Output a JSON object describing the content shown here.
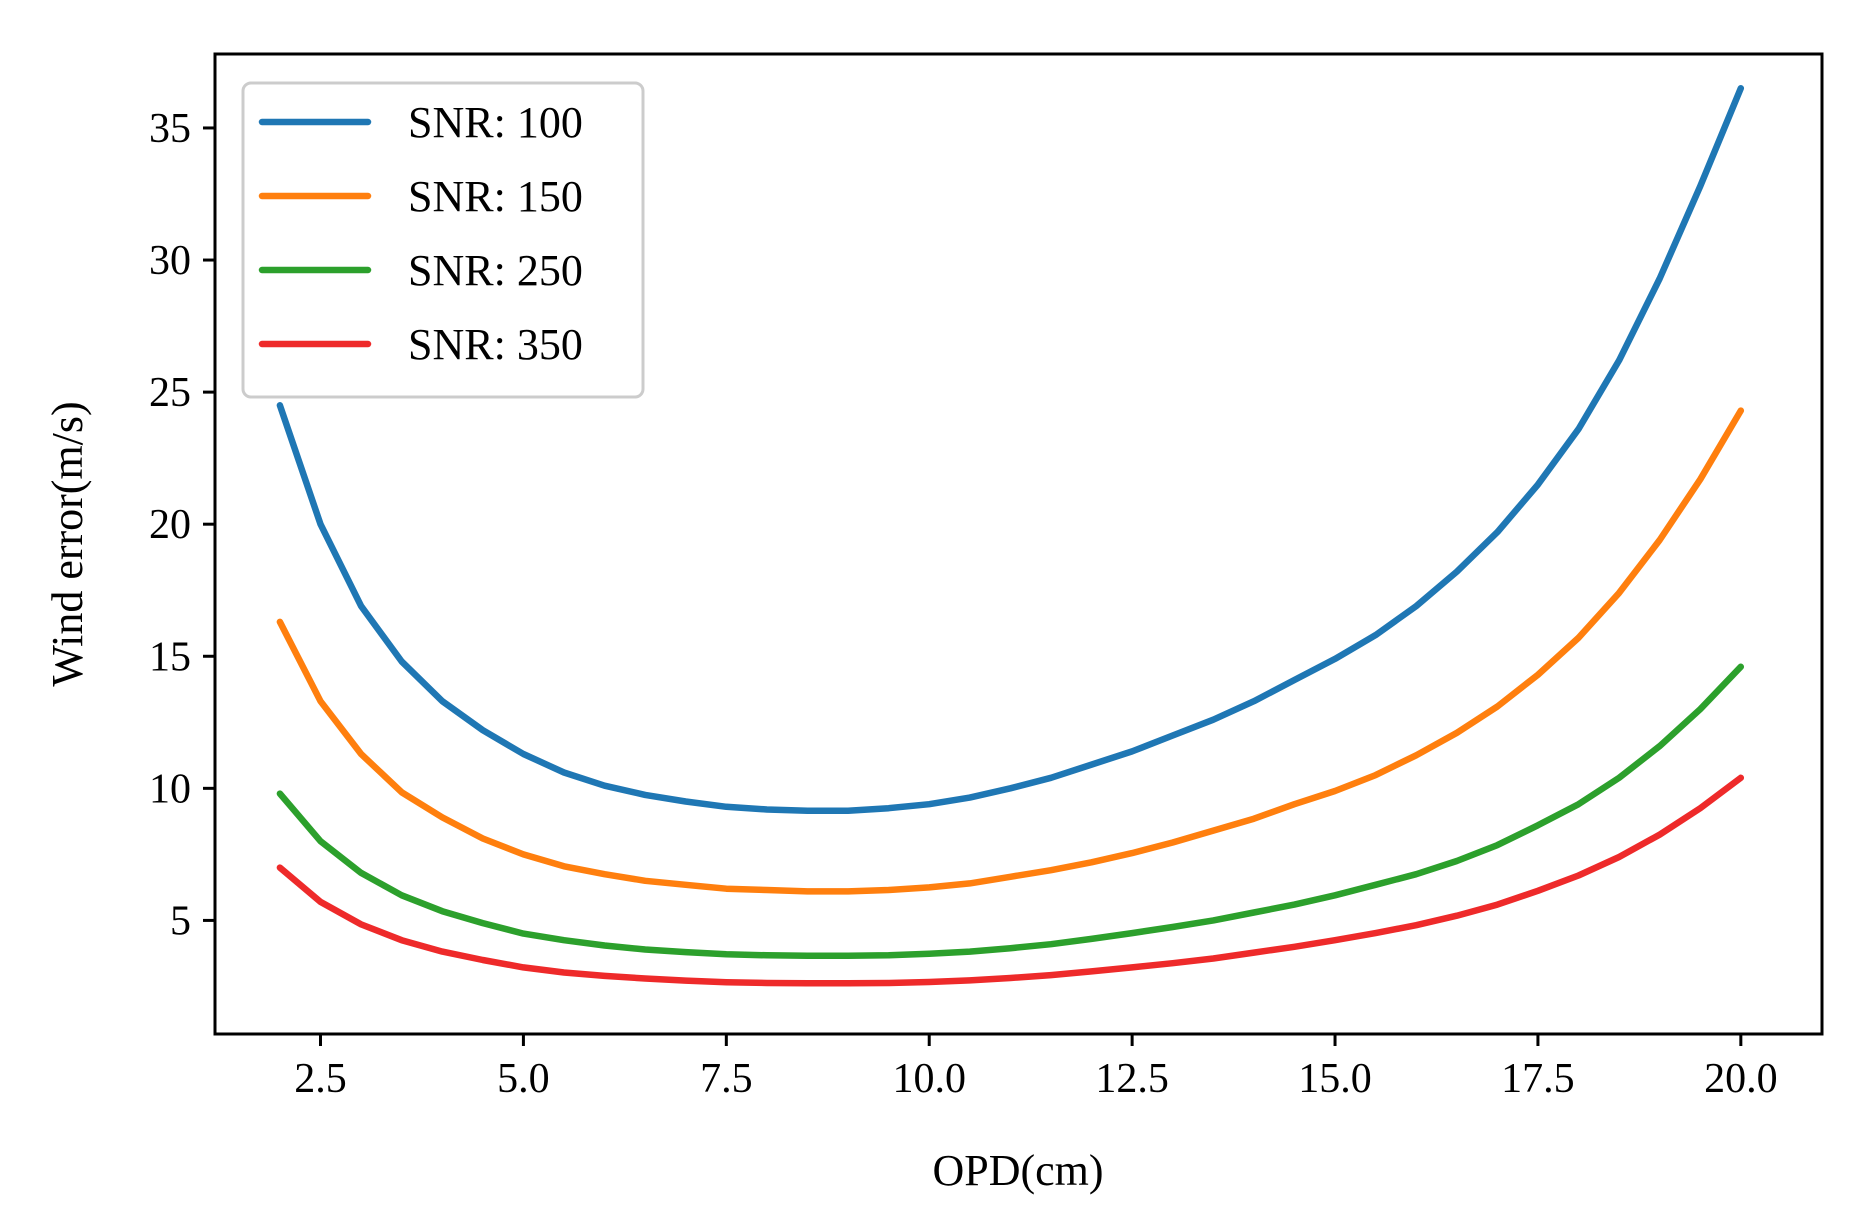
{
  "chart_data": {
    "type": "line",
    "title": "",
    "xlabel": "OPD(cm)",
    "ylabel": "Wind error(m/s)",
    "xlim": [
      1.2,
      21.0
    ],
    "ylim": [
      0.7,
      37.8
    ],
    "xticks": [
      2.5,
      5.0,
      7.5,
      10.0,
      12.5,
      15.0,
      17.5,
      20.0
    ],
    "xtick_labels": [
      "2.5",
      "5.0",
      "7.5",
      "10.0",
      "12.5",
      "15.0",
      "17.5",
      "20.0"
    ],
    "yticks": [
      5,
      10,
      15,
      20,
      25,
      30,
      35
    ],
    "ytick_labels": [
      "5",
      "10",
      "15",
      "20",
      "25",
      "30",
      "35"
    ],
    "grid": false,
    "legend_position": "top-left",
    "x": [
      2.0,
      2.5,
      3.0,
      3.5,
      4.0,
      4.5,
      5.0,
      5.5,
      6.0,
      6.5,
      7.0,
      7.5,
      8.0,
      8.5,
      9.0,
      9.5,
      10.0,
      10.5,
      11.0,
      11.5,
      12.0,
      12.5,
      13.0,
      13.5,
      14.0,
      14.5,
      15.0,
      15.5,
      16.0,
      16.5,
      17.0,
      17.5,
      18.0,
      18.5,
      19.0,
      19.5,
      20.0
    ],
    "series": [
      {
        "name": "SNR: 100",
        "color": "#1f77b4",
        "values": [
          24.5,
          20.0,
          16.9,
          14.8,
          13.3,
          12.2,
          11.3,
          10.6,
          10.1,
          9.75,
          9.5,
          9.3,
          9.2,
          9.15,
          9.15,
          9.25,
          9.4,
          9.65,
          10.0,
          10.4,
          10.9,
          11.4,
          12.0,
          12.6,
          13.3,
          14.1,
          14.9,
          15.8,
          16.9,
          18.2,
          19.7,
          21.5,
          23.6,
          26.2,
          29.3,
          32.8,
          36.5
        ]
      },
      {
        "name": "SNR: 150",
        "color": "#ff7f0e",
        "values": [
          16.3,
          13.3,
          11.3,
          9.85,
          8.9,
          8.1,
          7.5,
          7.05,
          6.75,
          6.5,
          6.35,
          6.2,
          6.15,
          6.1,
          6.1,
          6.15,
          6.25,
          6.4,
          6.65,
          6.9,
          7.2,
          7.55,
          7.95,
          8.4,
          8.85,
          9.4,
          9.9,
          10.5,
          11.25,
          12.1,
          13.1,
          14.3,
          15.7,
          17.4,
          19.4,
          21.7,
          24.3
        ]
      },
      {
        "name": "SNR: 250",
        "color": "#2ca02c",
        "values": [
          9.8,
          8.0,
          6.8,
          5.95,
          5.35,
          4.9,
          4.5,
          4.25,
          4.05,
          3.9,
          3.8,
          3.72,
          3.68,
          3.66,
          3.66,
          3.68,
          3.74,
          3.82,
          3.95,
          4.1,
          4.3,
          4.52,
          4.75,
          5.0,
          5.3,
          5.6,
          5.95,
          6.35,
          6.75,
          7.25,
          7.85,
          8.6,
          9.4,
          10.4,
          11.6,
          13.0,
          14.6
        ]
      },
      {
        "name": "SNR: 350",
        "color": "#ee2a2a",
        "values": [
          7.0,
          5.7,
          4.85,
          4.25,
          3.82,
          3.5,
          3.22,
          3.03,
          2.9,
          2.8,
          2.72,
          2.66,
          2.63,
          2.62,
          2.62,
          2.63,
          2.67,
          2.73,
          2.82,
          2.93,
          3.07,
          3.22,
          3.38,
          3.56,
          3.78,
          4.0,
          4.25,
          4.52,
          4.82,
          5.18,
          5.6,
          6.12,
          6.7,
          7.4,
          8.25,
          9.25,
          10.4
        ]
      }
    ]
  }
}
